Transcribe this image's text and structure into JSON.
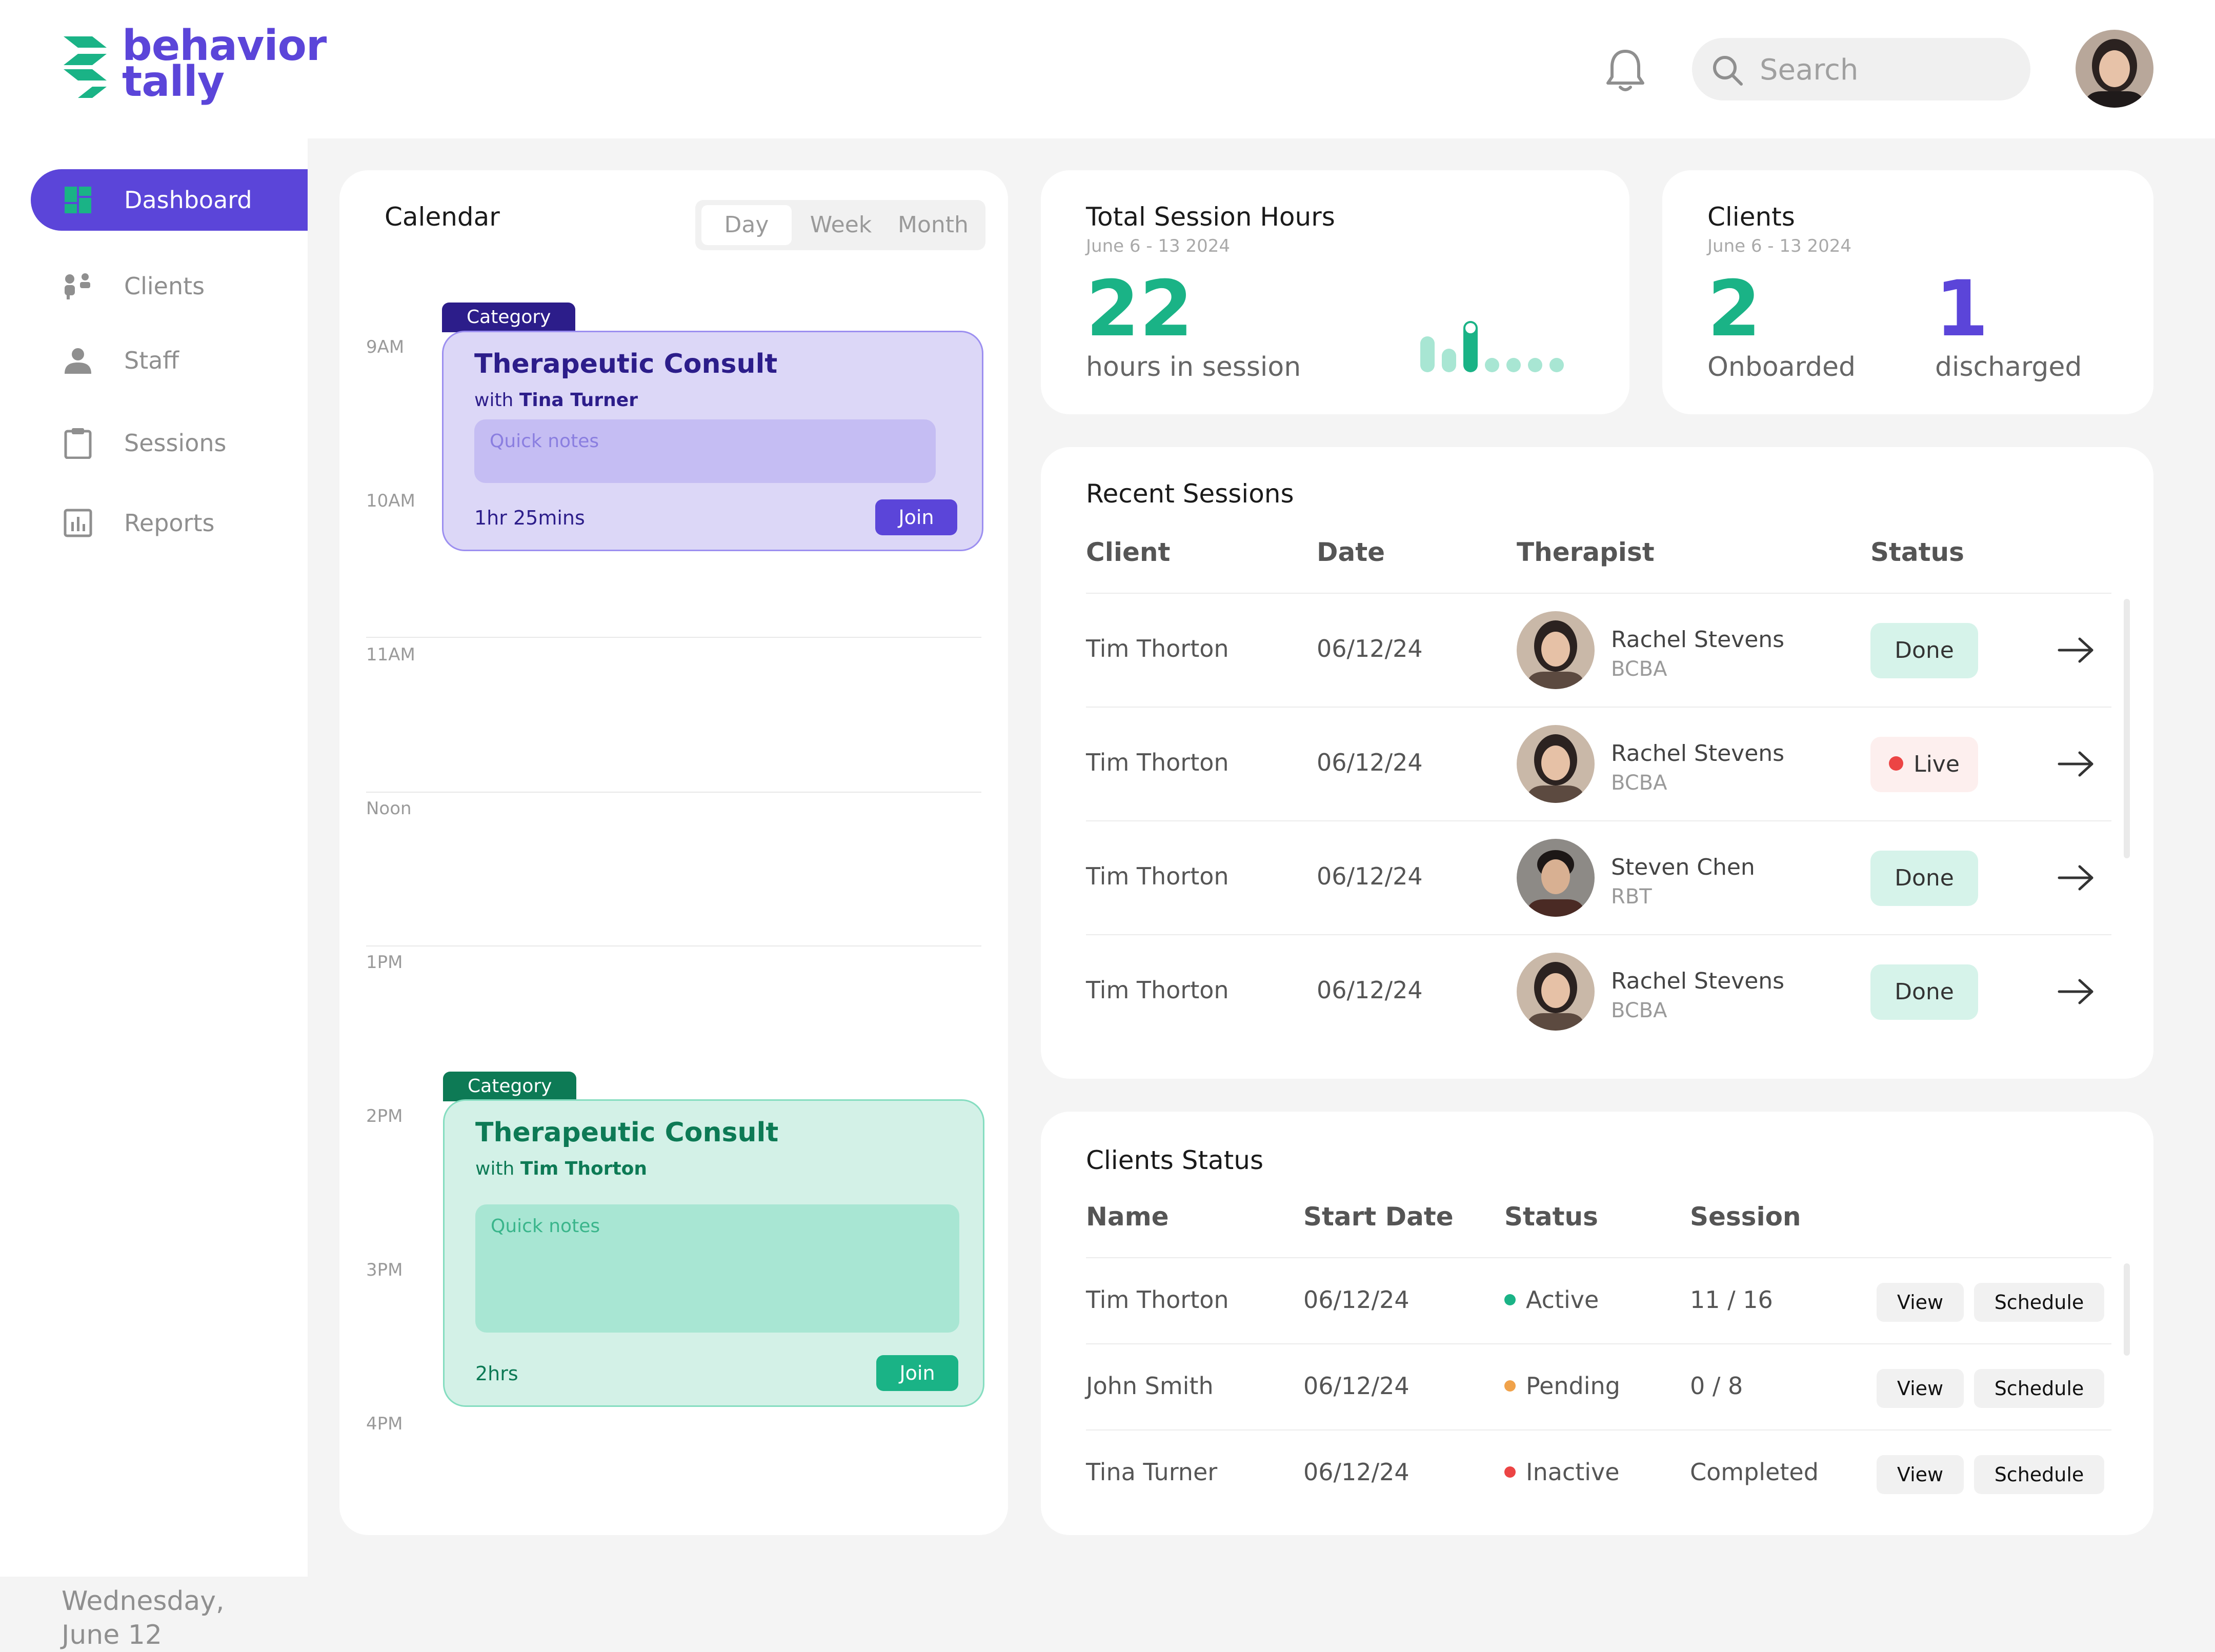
{
  "brand": {
    "name_line1": "behavior",
    "name_line2": "tally"
  },
  "header": {
    "search_placeholder": "Search"
  },
  "sidebar": {
    "items": [
      {
        "label": "Dashboard",
        "icon": "dashboard-icon",
        "active": true
      },
      {
        "label": "Clients",
        "icon": "clients-icon"
      },
      {
        "label": "Staff",
        "icon": "staff-icon"
      },
      {
        "label": "Sessions",
        "icon": "clipboard-icon"
      },
      {
        "label": "Reports",
        "icon": "reports-icon"
      }
    ],
    "date_line1": "Wednesday,",
    "date_line2": "June 12"
  },
  "calendar": {
    "title": "Calendar",
    "views": [
      "Day",
      "Week",
      "Month"
    ],
    "active_view": "Day",
    "hours": [
      "9AM",
      "10AM",
      "11AM",
      "Noon",
      "1PM",
      "2PM",
      "3PM",
      "4PM"
    ],
    "events": [
      {
        "category": "Category",
        "title": "Therapeutic Consult",
        "with_prefix": "with",
        "with_name": "Tina Turner",
        "notes_placeholder": "Quick notes",
        "duration": "1hr 25mins",
        "join_label": "Join"
      },
      {
        "category": "Category",
        "title": "Therapeutic Consult",
        "with_prefix": "with",
        "with_name": "Tim Thorton",
        "notes_placeholder": "Quick notes",
        "duration": "2hrs",
        "join_label": "Join"
      }
    ]
  },
  "session_hours": {
    "title": "Total Session Hours",
    "date_range": "June 6 - 13 2024",
    "value": "22",
    "subtitle": "hours in session"
  },
  "clients_summary": {
    "title": "Clients",
    "date_range": "June 6 - 13 2024",
    "onboarded_value": "2",
    "onboarded_label": "Onboarded",
    "discharged_value": "1",
    "discharged_label": "discharged"
  },
  "recent_sessions": {
    "title": "Recent Sessions",
    "columns": [
      "Client",
      "Date",
      "Therapist",
      "Status"
    ],
    "rows": [
      {
        "client": "Tim Thorton",
        "date": "06/12/24",
        "therapist": "Rachel Stevens",
        "role": "BCBA",
        "status": "Done"
      },
      {
        "client": "Tim Thorton",
        "date": "06/12/24",
        "therapist": "Rachel Stevens",
        "role": "BCBA",
        "status": "Live"
      },
      {
        "client": "Tim Thorton",
        "date": "06/12/24",
        "therapist": "Steven Chen",
        "role": "RBT",
        "status": "Done"
      },
      {
        "client": "Tim Thorton",
        "date": "06/12/24",
        "therapist": "Rachel Stevens",
        "role": "BCBA",
        "status": "Done"
      }
    ]
  },
  "clients_status": {
    "title": "Clients Status",
    "columns": [
      "Name",
      "Start Date",
      "Status",
      "Session"
    ],
    "rows": [
      {
        "name": "Tim Thorton",
        "start_date": "06/12/24",
        "status": "Active",
        "status_color": "#1ab386",
        "session": "11 / 16",
        "view_label": "View",
        "schedule_label": "Schedule"
      },
      {
        "name": "John Smith",
        "start_date": "06/12/24",
        "status": "Pending",
        "status_color": "#f0a24a",
        "session": "0 / 8",
        "view_label": "View",
        "schedule_label": "Schedule"
      },
      {
        "name": "Tina Turner",
        "start_date": "06/12/24",
        "status": "Inactive",
        "status_color": "#ec4444",
        "session": "Completed",
        "view_label": "View",
        "schedule_label": "Schedule"
      }
    ]
  },
  "colors": {
    "brand_purple": "#5b45d9",
    "brand_green": "#1ab386",
    "done_badge": "#d6f3ea",
    "live_badge": "#fdefee"
  }
}
